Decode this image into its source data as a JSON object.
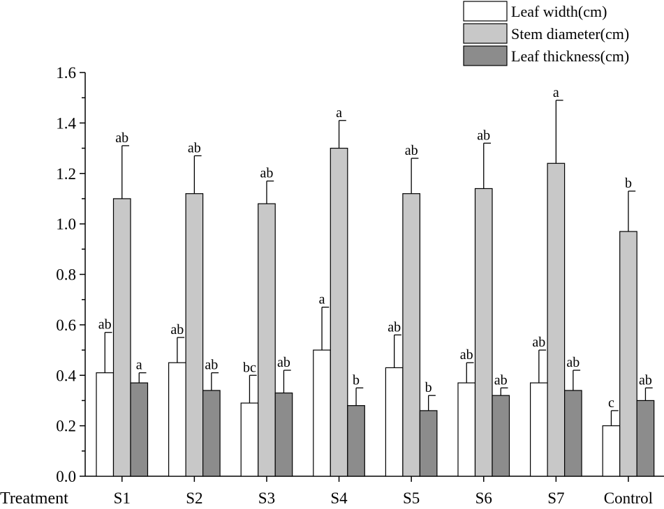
{
  "chart_data": {
    "type": "bar",
    "xlabel": "Treatment",
    "ylabel": "",
    "ylim": [
      0,
      1.6
    ],
    "yticks": [
      "0.0",
      "0.2",
      "0.4",
      "0.6",
      "0.8",
      "1.0",
      "1.2",
      "1.4",
      "1.6"
    ],
    "categories": [
      "S1",
      "S2",
      "S3",
      "S4",
      "S5",
      "S6",
      "S7",
      "Control"
    ],
    "legend_position": "top-right",
    "series": [
      {
        "name": "Leaf width(cm)",
        "color": "#ffffff",
        "values": [
          0.41,
          0.45,
          0.29,
          0.5,
          0.43,
          0.37,
          0.37,
          0.2
        ],
        "errors": [
          0.16,
          0.1,
          0.11,
          0.17,
          0.13,
          0.08,
          0.13,
          0.06
        ],
        "letters": [
          "ab",
          "ab",
          "bc",
          "a",
          "ab",
          "ab",
          "ab",
          "c"
        ]
      },
      {
        "name": "Stem diameter(cm)",
        "color": "#c8c8c8",
        "values": [
          1.1,
          1.12,
          1.08,
          1.3,
          1.12,
          1.14,
          1.24,
          0.97
        ],
        "errors": [
          0.21,
          0.15,
          0.09,
          0.11,
          0.14,
          0.18,
          0.25,
          0.16
        ],
        "letters": [
          "ab",
          "ab",
          "ab",
          "a",
          "ab",
          "ab",
          "a",
          "b"
        ]
      },
      {
        "name": "Leaf thickness(cm)",
        "color": "#8c8c8c",
        "values": [
          0.37,
          0.34,
          0.33,
          0.28,
          0.26,
          0.32,
          0.34,
          0.3
        ],
        "errors": [
          0.04,
          0.07,
          0.09,
          0.07,
          0.06,
          0.03,
          0.08,
          0.05
        ],
        "letters": [
          "a",
          "ab",
          "ab",
          "b",
          "b",
          "ab",
          "ab",
          "ab"
        ]
      }
    ]
  }
}
